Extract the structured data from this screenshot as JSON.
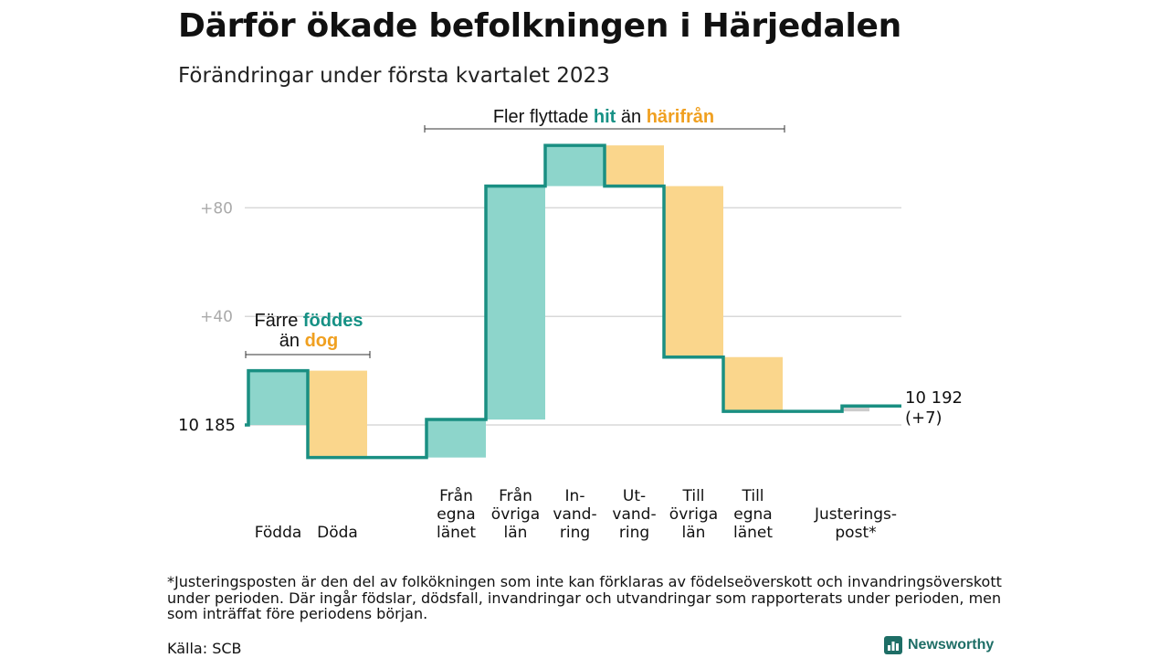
{
  "title": "Därför ökade befolkningen i Härjedalen",
  "subtitle": "Förändringar under första kvartalet 2023",
  "chart_data": {
    "type": "waterfall",
    "base_value": 10185,
    "base_label": "10 185",
    "end_label_value": "10 192",
    "end_label_change": "(+7)",
    "y_tick_labels": [
      "+40",
      "+80"
    ],
    "y_ticks": [
      40,
      80
    ],
    "ylim": [
      -17,
      107
    ],
    "grid": true,
    "steps": [
      {
        "label_lines": [
          "Födda"
        ],
        "value": 20,
        "type": "increase"
      },
      {
        "label_lines": [
          "Döda"
        ],
        "value": -32,
        "type": "decrease"
      },
      {
        "label_lines": [
          "Från",
          "egna",
          "länet"
        ],
        "value": 14,
        "type": "increase"
      },
      {
        "label_lines": [
          "Från",
          "övriga",
          "län"
        ],
        "value": 86,
        "type": "increase"
      },
      {
        "label_lines": [
          "In-",
          "vand-",
          "ring"
        ],
        "value": 15,
        "type": "increase"
      },
      {
        "label_lines": [
          "Ut-",
          "vand-",
          "ring"
        ],
        "value": -15,
        "type": "decrease"
      },
      {
        "label_lines": [
          "Till",
          "övriga",
          "län"
        ],
        "value": -63,
        "type": "decrease"
      },
      {
        "label_lines": [
          "Till",
          "egna",
          "länet"
        ],
        "value": -20,
        "type": "decrease"
      },
      {
        "label_lines": [
          "Justerings-",
          "post*"
        ],
        "value": 2,
        "type": "adjustment"
      }
    ],
    "annotations": [
      {
        "parts": [
          {
            "text": "Färre ",
            "color": "dark"
          },
          {
            "text": "föddes",
            "color": "teal"
          }
        ],
        "parts2": [
          {
            "text": "än ",
            "color": "dark"
          },
          {
            "text": "dog",
            "color": "orange"
          }
        ]
      },
      {
        "parts": [
          {
            "text": "Fler flyttade ",
            "color": "dark"
          },
          {
            "text": "hit",
            "color": "teal"
          },
          {
            "text": " än ",
            "color": "dark"
          },
          {
            "text": "härifrån",
            "color": "orange"
          }
        ]
      }
    ],
    "colors": {
      "increase": "#8dd5cb",
      "decrease": "#fad68c",
      "line": "#1a8f82",
      "adjustment": "#cccccc",
      "grid": "#d9d9d9",
      "tick_text": "#aaaaaa"
    }
  },
  "footnote": "*Justeringsposten är den del av folkökningen som inte kan förklaras av födelseöverskott och invandringsöverskott under perioden. Där ingår födslar, dödsfall, invandringar och utvandringar som rapporterats under perioden, men som inträffat före periodens början.",
  "source": "Källa: SCB",
  "logo": {
    "text": "Newsworthy",
    "icon": "bar-chart-icon"
  }
}
